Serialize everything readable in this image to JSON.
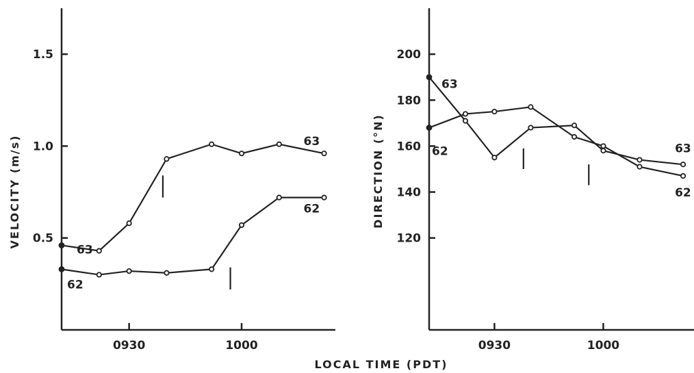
{
  "chart_data": [
    {
      "type": "line",
      "ylabel": "VELOCITY (m/s)",
      "ylim": [
        0.0,
        1.75
      ],
      "xlim": [
        "09:12",
        "10:25"
      ],
      "xticks": [
        "0930",
        "1000"
      ],
      "yticks": [
        "0.5",
        "1.0",
        "1.5"
      ],
      "series": [
        {
          "name": "63",
          "x": [
            "09:12",
            "09:22",
            "09:30",
            "09:40",
            "09:52",
            "10:00",
            "10:10",
            "10:22"
          ],
          "values": [
            0.46,
            0.43,
            0.58,
            0.93,
            1.01,
            0.96,
            1.01,
            0.96
          ]
        },
        {
          "name": "62",
          "x": [
            "09:12",
            "09:22",
            "09:30",
            "09:40",
            "09:52",
            "10:00",
            "10:10",
            "10:22"
          ],
          "values": [
            0.33,
            0.3,
            0.32,
            0.31,
            0.33,
            0.57,
            0.72,
            0.72
          ]
        }
      ],
      "markers": [
        {
          "x": "09:39",
          "y": [
            0.72,
            0.84
          ]
        },
        {
          "x": "09:57",
          "y": [
            0.22,
            0.34
          ]
        }
      ]
    },
    {
      "type": "line",
      "ylabel": "DIRECTION (°N)",
      "ylim": [
        80,
        220
      ],
      "xlim": [
        "09:12",
        "10:25"
      ],
      "xticks": [
        "0930",
        "1000"
      ],
      "yticks": [
        "120",
        "140",
        "160",
        "180",
        "200"
      ],
      "series": [
        {
          "name": "63",
          "x": [
            "09:12",
            "09:22",
            "09:30",
            "09:40",
            "09:52",
            "10:00",
            "10:10",
            "10:22"
          ],
          "values": [
            190,
            171,
            155,
            168,
            169,
            158,
            154,
            152
          ]
        },
        {
          "name": "62",
          "x": [
            "09:12",
            "09:22",
            "09:30",
            "09:40",
            "09:52",
            "10:00",
            "10:10",
            "10:22"
          ],
          "values": [
            168,
            174,
            175,
            177,
            164,
            160,
            151,
            147
          ]
        }
      ],
      "markers": [
        {
          "x": "09:38",
          "y": [
            150,
            159
          ]
        },
        {
          "x": "09:56",
          "y": [
            143,
            152
          ]
        }
      ]
    }
  ],
  "xlabel": "LOCAL TIME (PDT)"
}
